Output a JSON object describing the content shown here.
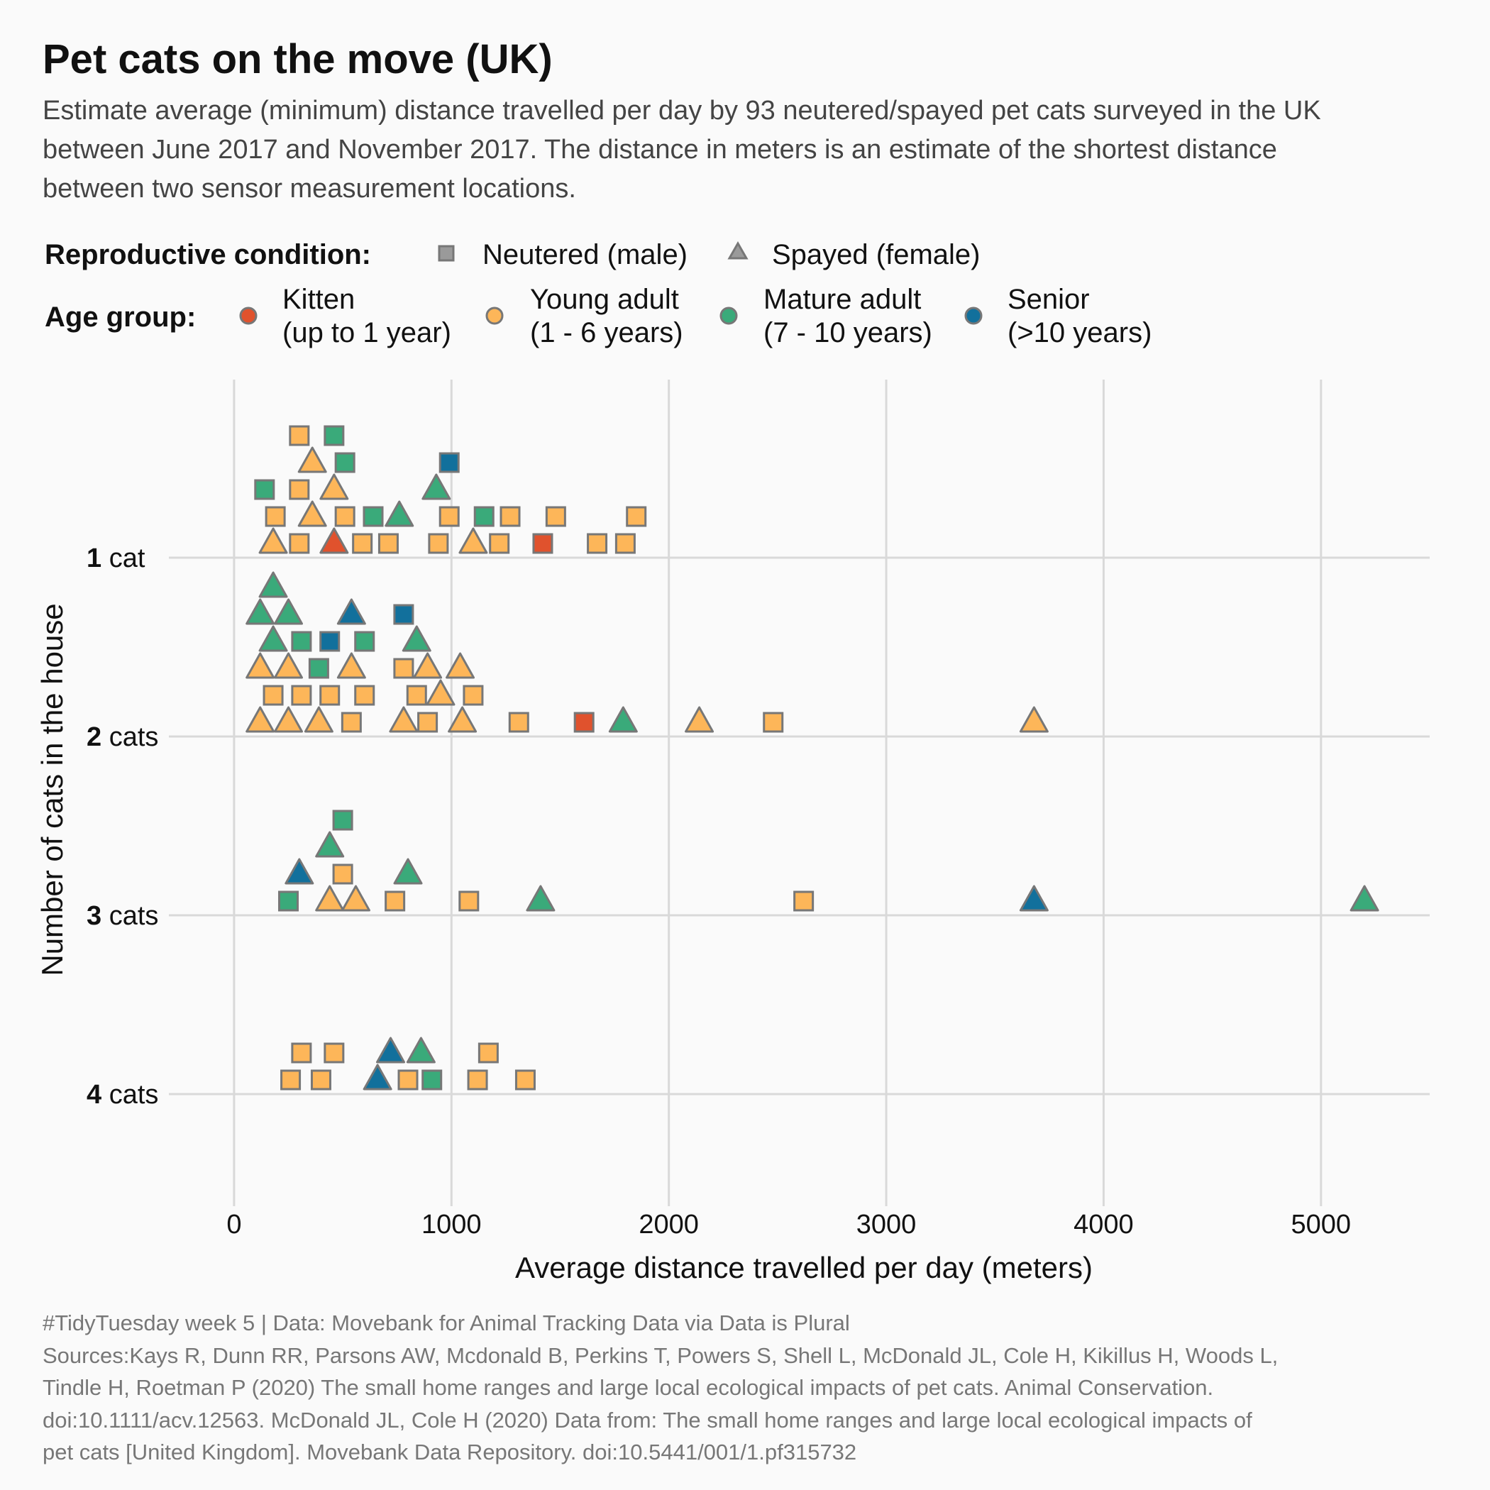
{
  "title": "Pet cats on the move (UK)",
  "subtitle": [
    "Estimate average (minimum) distance travelled per day by 93 neutered/spayed pet cats surveyed in the UK",
    "between June 2017 and November 2017. The distance in meters is an estimate of the shortest distance",
    "between two sensor measurement locations."
  ],
  "legend": {
    "condition_title": "Reproductive condition:",
    "condition_items": [
      {
        "key": "M",
        "shape": "square",
        "label": "Neutered (male)"
      },
      {
        "key": "F",
        "shape": "triangle",
        "label": "Spayed (female)"
      }
    ],
    "age_title": "Age group:",
    "age_items": [
      {
        "key": "K",
        "color": "#e0522d",
        "line1": "Kitten",
        "line2": "(up to 1 year)"
      },
      {
        "key": "Y",
        "color": "#fdb659",
        "line1": "Young adult",
        "line2": "(1 - 6 years)"
      },
      {
        "key": "A",
        "color": "#3aaa7a",
        "line1": "Mature adult",
        "line2": "(7 - 10 years)"
      },
      {
        "key": "S",
        "color": "#12709c",
        "line1": "Senior",
        "line2": "(>10 years)"
      }
    ]
  },
  "caption": [
    "#TidyTuesday week 5 | Data: Movebank for Animal Tracking Data via Data is Plural",
    "Sources:Kays R, Dunn RR, Parsons AW, Mcdonald B, Perkins T, Powers S, Shell L, McDonald JL, Cole H, Kikillus H, Woods L,",
    "Tindle H, Roetman P (2020) The small home ranges and large local ecological impacts of pet cats. Animal Conservation.",
    "doi:10.1111/acv.12563. McDonald JL, Cole H (2020) Data from: The small home ranges and large local ecological impacts of",
    "pet cats [United Kingdom]. Movebank Data Repository. doi:10.5441/001/1.pf315732"
  ],
  "colors": {
    "background": "#fafafa",
    "grid": "#d9d9d9",
    "marker_outline": "#777777",
    "neutral_legend_shape": "#9a9a9a"
  },
  "chart_data": {
    "type": "scatter",
    "xlabel": "Average distance travelled per day (meters)",
    "ylabel": "Number of cats in the house",
    "xlim": [
      -300,
      5500
    ],
    "x_ticks": [
      0,
      1000,
      2000,
      3000,
      4000,
      5000
    ],
    "grid": true,
    "legend_position": "top",
    "y_categories": [
      {
        "num": "1",
        "unit": "cat"
      },
      {
        "num": "2",
        "unit": "cats"
      },
      {
        "num": "3",
        "unit": "cats"
      },
      {
        "num": "4",
        "unit": "cats"
      }
    ],
    "marker_encoding": {
      "shape": "reproductive condition",
      "color": "age group"
    },
    "points": [
      {
        "cats": 1,
        "x": 180,
        "stack": 0,
        "sex": "F",
        "age": "Y"
      },
      {
        "cats": 1,
        "x": 300,
        "stack": 0,
        "sex": "M",
        "age": "Y"
      },
      {
        "cats": 1,
        "x": 460,
        "stack": 0,
        "sex": "F",
        "age": "K"
      },
      {
        "cats": 1,
        "x": 590,
        "stack": 0,
        "sex": "M",
        "age": "Y"
      },
      {
        "cats": 1,
        "x": 710,
        "stack": 0,
        "sex": "M",
        "age": "Y"
      },
      {
        "cats": 1,
        "x": 940,
        "stack": 0,
        "sex": "M",
        "age": "Y"
      },
      {
        "cats": 1,
        "x": 1100,
        "stack": 0,
        "sex": "F",
        "age": "Y"
      },
      {
        "cats": 1,
        "x": 1220,
        "stack": 0,
        "sex": "M",
        "age": "Y"
      },
      {
        "cats": 1,
        "x": 1420,
        "stack": 0,
        "sex": "M",
        "age": "K"
      },
      {
        "cats": 1,
        "x": 1670,
        "stack": 0,
        "sex": "M",
        "age": "Y"
      },
      {
        "cats": 1,
        "x": 1800,
        "stack": 0,
        "sex": "M",
        "age": "Y"
      },
      {
        "cats": 1,
        "x": 190,
        "stack": 1,
        "sex": "M",
        "age": "Y"
      },
      {
        "cats": 1,
        "x": 360,
        "stack": 1,
        "sex": "F",
        "age": "Y"
      },
      {
        "cats": 1,
        "x": 510,
        "stack": 1,
        "sex": "M",
        "age": "Y"
      },
      {
        "cats": 1,
        "x": 640,
        "stack": 1,
        "sex": "M",
        "age": "A"
      },
      {
        "cats": 1,
        "x": 760,
        "stack": 1,
        "sex": "F",
        "age": "A"
      },
      {
        "cats": 1,
        "x": 990,
        "stack": 1,
        "sex": "M",
        "age": "Y"
      },
      {
        "cats": 1,
        "x": 1150,
        "stack": 1,
        "sex": "M",
        "age": "A"
      },
      {
        "cats": 1,
        "x": 1270,
        "stack": 1,
        "sex": "M",
        "age": "Y"
      },
      {
        "cats": 1,
        "x": 1480,
        "stack": 1,
        "sex": "M",
        "age": "Y"
      },
      {
        "cats": 1,
        "x": 1850,
        "stack": 1,
        "sex": "M",
        "age": "Y"
      },
      {
        "cats": 1,
        "x": 140,
        "stack": 2,
        "sex": "M",
        "age": "A"
      },
      {
        "cats": 1,
        "x": 300,
        "stack": 2,
        "sex": "M",
        "age": "Y"
      },
      {
        "cats": 1,
        "x": 460,
        "stack": 2,
        "sex": "F",
        "age": "Y"
      },
      {
        "cats": 1,
        "x": 930,
        "stack": 2,
        "sex": "F",
        "age": "A"
      },
      {
        "cats": 1,
        "x": 360,
        "stack": 3,
        "sex": "F",
        "age": "Y"
      },
      {
        "cats": 1,
        "x": 510,
        "stack": 3,
        "sex": "M",
        "age": "A"
      },
      {
        "cats": 1,
        "x": 990,
        "stack": 3,
        "sex": "M",
        "age": "S"
      },
      {
        "cats": 1,
        "x": 300,
        "stack": 4,
        "sex": "M",
        "age": "Y"
      },
      {
        "cats": 1,
        "x": 460,
        "stack": 4,
        "sex": "M",
        "age": "A"
      },
      {
        "cats": 2,
        "x": 120,
        "stack": 0,
        "sex": "F",
        "age": "Y"
      },
      {
        "cats": 2,
        "x": 250,
        "stack": 0,
        "sex": "F",
        "age": "Y"
      },
      {
        "cats": 2,
        "x": 390,
        "stack": 0,
        "sex": "F",
        "age": "Y"
      },
      {
        "cats": 2,
        "x": 540,
        "stack": 0,
        "sex": "M",
        "age": "Y"
      },
      {
        "cats": 2,
        "x": 780,
        "stack": 0,
        "sex": "F",
        "age": "Y"
      },
      {
        "cats": 2,
        "x": 890,
        "stack": 0,
        "sex": "M",
        "age": "Y"
      },
      {
        "cats": 2,
        "x": 1050,
        "stack": 0,
        "sex": "F",
        "age": "Y"
      },
      {
        "cats": 2,
        "x": 1310,
        "stack": 0,
        "sex": "M",
        "age": "Y"
      },
      {
        "cats": 2,
        "x": 1610,
        "stack": 0,
        "sex": "M",
        "age": "K"
      },
      {
        "cats": 2,
        "x": 1790,
        "stack": 0,
        "sex": "F",
        "age": "A"
      },
      {
        "cats": 2,
        "x": 2140,
        "stack": 0,
        "sex": "F",
        "age": "Y"
      },
      {
        "cats": 2,
        "x": 2480,
        "stack": 0,
        "sex": "M",
        "age": "Y"
      },
      {
        "cats": 2,
        "x": 3680,
        "stack": 0,
        "sex": "F",
        "age": "Y"
      },
      {
        "cats": 2,
        "x": 180,
        "stack": 1,
        "sex": "M",
        "age": "Y"
      },
      {
        "cats": 2,
        "x": 310,
        "stack": 1,
        "sex": "M",
        "age": "Y"
      },
      {
        "cats": 2,
        "x": 440,
        "stack": 1,
        "sex": "M",
        "age": "Y"
      },
      {
        "cats": 2,
        "x": 600,
        "stack": 1,
        "sex": "M",
        "age": "Y"
      },
      {
        "cats": 2,
        "x": 840,
        "stack": 1,
        "sex": "M",
        "age": "Y"
      },
      {
        "cats": 2,
        "x": 950,
        "stack": 1,
        "sex": "F",
        "age": "Y"
      },
      {
        "cats": 2,
        "x": 1100,
        "stack": 1,
        "sex": "M",
        "age": "Y"
      },
      {
        "cats": 2,
        "x": 120,
        "stack": 2,
        "sex": "F",
        "age": "Y"
      },
      {
        "cats": 2,
        "x": 250,
        "stack": 2,
        "sex": "F",
        "age": "Y"
      },
      {
        "cats": 2,
        "x": 390,
        "stack": 2,
        "sex": "M",
        "age": "A"
      },
      {
        "cats": 2,
        "x": 540,
        "stack": 2,
        "sex": "F",
        "age": "Y"
      },
      {
        "cats": 2,
        "x": 780,
        "stack": 2,
        "sex": "M",
        "age": "Y"
      },
      {
        "cats": 2,
        "x": 890,
        "stack": 2,
        "sex": "F",
        "age": "Y"
      },
      {
        "cats": 2,
        "x": 1040,
        "stack": 2,
        "sex": "F",
        "age": "Y"
      },
      {
        "cats": 2,
        "x": 180,
        "stack": 3,
        "sex": "F",
        "age": "A"
      },
      {
        "cats": 2,
        "x": 310,
        "stack": 3,
        "sex": "M",
        "age": "A"
      },
      {
        "cats": 2,
        "x": 440,
        "stack": 3,
        "sex": "M",
        "age": "S"
      },
      {
        "cats": 2,
        "x": 600,
        "stack": 3,
        "sex": "M",
        "age": "A"
      },
      {
        "cats": 2,
        "x": 840,
        "stack": 3,
        "sex": "F",
        "age": "A"
      },
      {
        "cats": 2,
        "x": 120,
        "stack": 4,
        "sex": "F",
        "age": "A"
      },
      {
        "cats": 2,
        "x": 250,
        "stack": 4,
        "sex": "F",
        "age": "A"
      },
      {
        "cats": 2,
        "x": 540,
        "stack": 4,
        "sex": "F",
        "age": "S"
      },
      {
        "cats": 2,
        "x": 780,
        "stack": 4,
        "sex": "M",
        "age": "S"
      },
      {
        "cats": 2,
        "x": 180,
        "stack": 5,
        "sex": "F",
        "age": "A"
      },
      {
        "cats": 3,
        "x": 250,
        "stack": 0,
        "sex": "M",
        "age": "A"
      },
      {
        "cats": 3,
        "x": 440,
        "stack": 0,
        "sex": "F",
        "age": "Y"
      },
      {
        "cats": 3,
        "x": 560,
        "stack": 0,
        "sex": "F",
        "age": "Y"
      },
      {
        "cats": 3,
        "x": 740,
        "stack": 0,
        "sex": "M",
        "age": "Y"
      },
      {
        "cats": 3,
        "x": 1080,
        "stack": 0,
        "sex": "M",
        "age": "Y"
      },
      {
        "cats": 3,
        "x": 1410,
        "stack": 0,
        "sex": "F",
        "age": "A"
      },
      {
        "cats": 3,
        "x": 2620,
        "stack": 0,
        "sex": "M",
        "age": "Y"
      },
      {
        "cats": 3,
        "x": 3680,
        "stack": 0,
        "sex": "F",
        "age": "S"
      },
      {
        "cats": 3,
        "x": 5200,
        "stack": 0,
        "sex": "F",
        "age": "A"
      },
      {
        "cats": 3,
        "x": 300,
        "stack": 1,
        "sex": "F",
        "age": "S"
      },
      {
        "cats": 3,
        "x": 500,
        "stack": 1,
        "sex": "M",
        "age": "Y"
      },
      {
        "cats": 3,
        "x": 800,
        "stack": 1,
        "sex": "F",
        "age": "A"
      },
      {
        "cats": 3,
        "x": 440,
        "stack": 2,
        "sex": "F",
        "age": "A"
      },
      {
        "cats": 3,
        "x": 500,
        "stack": 3,
        "sex": "M",
        "age": "A"
      },
      {
        "cats": 4,
        "x": 260,
        "stack": 0,
        "sex": "M",
        "age": "Y"
      },
      {
        "cats": 4,
        "x": 400,
        "stack": 0,
        "sex": "M",
        "age": "Y"
      },
      {
        "cats": 4,
        "x": 660,
        "stack": 0,
        "sex": "F",
        "age": "S"
      },
      {
        "cats": 4,
        "x": 800,
        "stack": 0,
        "sex": "M",
        "age": "Y"
      },
      {
        "cats": 4,
        "x": 910,
        "stack": 0,
        "sex": "M",
        "age": "A"
      },
      {
        "cats": 4,
        "x": 1120,
        "stack": 0,
        "sex": "M",
        "age": "Y"
      },
      {
        "cats": 4,
        "x": 1340,
        "stack": 0,
        "sex": "M",
        "age": "Y"
      },
      {
        "cats": 4,
        "x": 310,
        "stack": 1,
        "sex": "M",
        "age": "Y"
      },
      {
        "cats": 4,
        "x": 460,
        "stack": 1,
        "sex": "M",
        "age": "Y"
      },
      {
        "cats": 4,
        "x": 720,
        "stack": 1,
        "sex": "F",
        "age": "S"
      },
      {
        "cats": 4,
        "x": 860,
        "stack": 1,
        "sex": "F",
        "age": "A"
      },
      {
        "cats": 4,
        "x": 1170,
        "stack": 1,
        "sex": "M",
        "age": "Y"
      }
    ]
  }
}
